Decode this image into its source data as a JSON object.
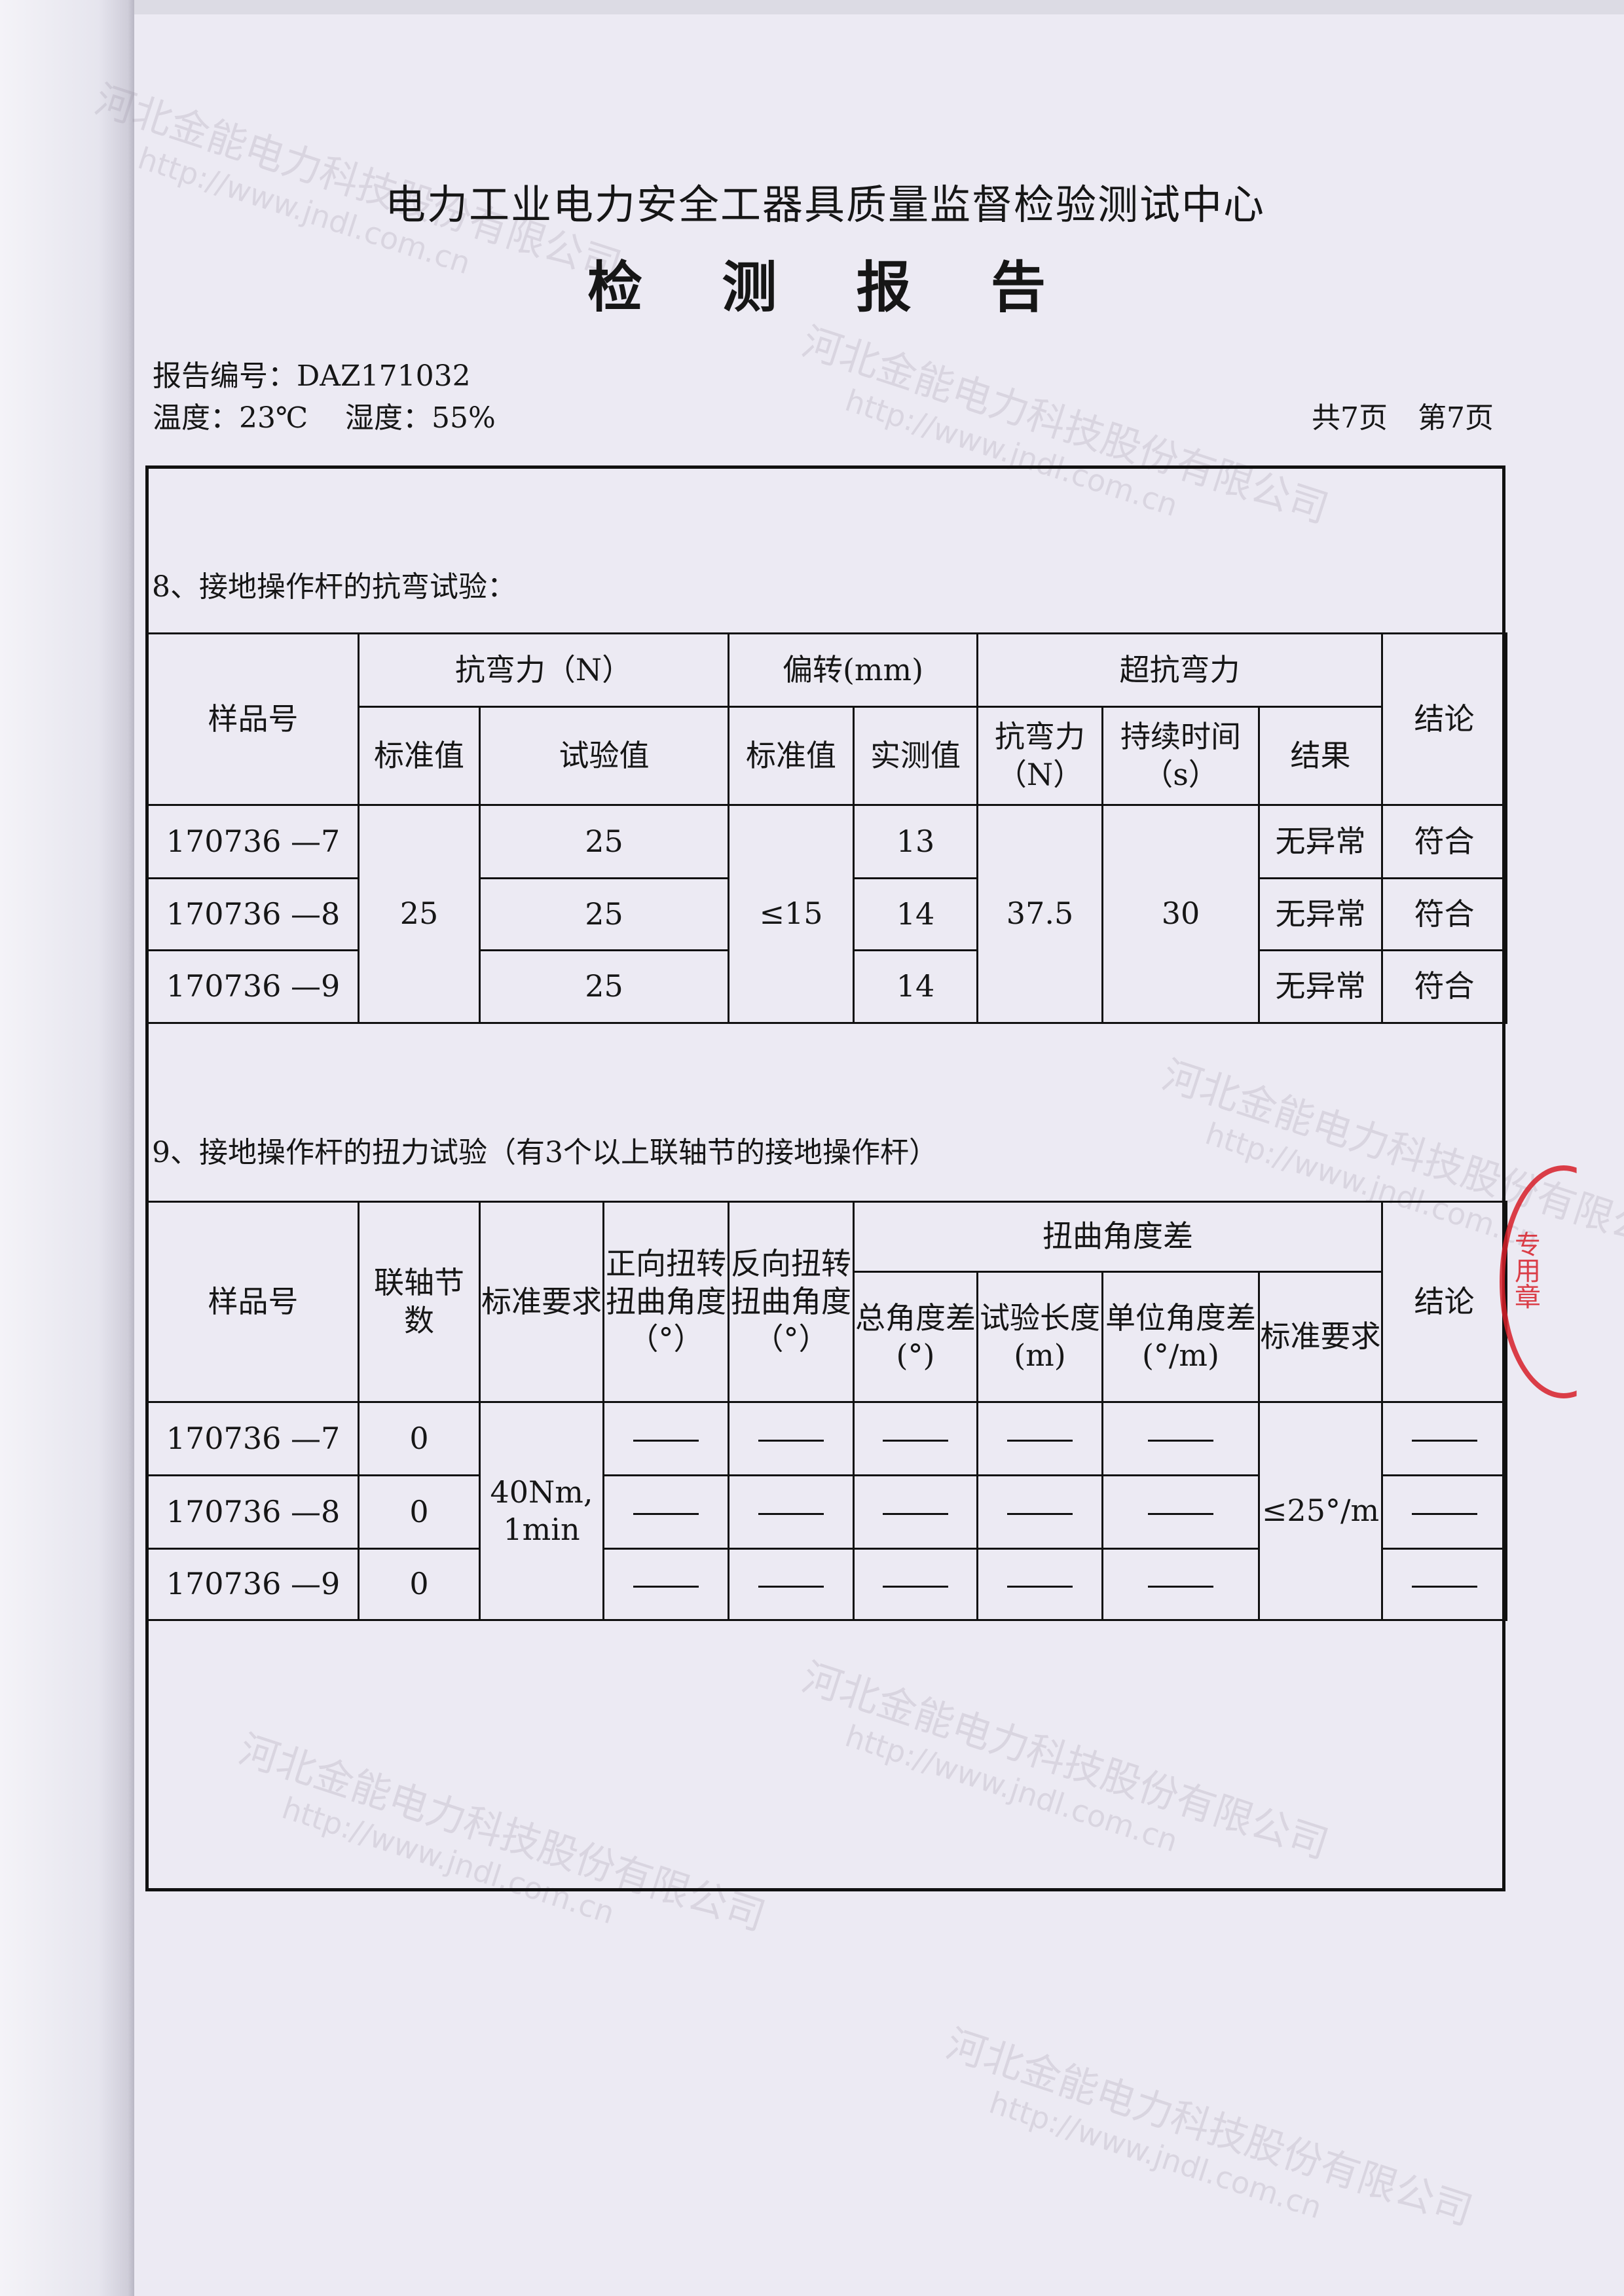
{
  "header": {
    "org_title": "电力工业电力安全工器具质量监督检验测试中心",
    "doc_title": "检 测 报 告",
    "report_no": "报告编号：DAZ171032",
    "temperature": "温度：23℃",
    "humidity": "湿度：55%",
    "total_pages": "共7页",
    "page": "第7页"
  },
  "watermark": {
    "company": "河北金能电力科技股份有限公司",
    "url": "http://www.jndl.com.cn"
  },
  "stamp": {
    "text": "专用章",
    "color": "#d71e28"
  },
  "section8": {
    "title": "8、接地操作杆的抗弯试验：",
    "headers": {
      "sample": "样品号",
      "bend_force": "抗弯力（N）",
      "deflection": "偏转(mm)",
      "over_bend": "超抗弯力",
      "conclusion": "结论",
      "std": "标准值",
      "test": "试验值",
      "std2": "标准值",
      "measured": "实测值",
      "ob_force": "抗弯力（N）",
      "duration": "持续时间（s）",
      "result": "结果"
    },
    "std_value": "25",
    "deflection_std": "≤15",
    "ob_force_value": "37.5",
    "duration_value": "30",
    "rows": [
      {
        "sample": "170736 —7",
        "test": "25",
        "measured": "13",
        "result": "无异常",
        "conclusion": "符合"
      },
      {
        "sample": "170736 —8",
        "test": "25",
        "measured": "14",
        "result": "无异常",
        "conclusion": "符合"
      },
      {
        "sample": "170736 —9",
        "test": "25",
        "measured": "14",
        "result": "无异常",
        "conclusion": "符合"
      }
    ]
  },
  "section9": {
    "title": "9、接地操作杆的扭力试验（有3个以上联轴节的接地操作杆）",
    "headers": {
      "sample": "样品号",
      "joints": "联轴节数",
      "std_req": "标准要求",
      "fwd": "正向扭转扭曲角度（°）",
      "rev": "反向扭转扭曲角度（°）",
      "twist_diff": "扭曲角度差",
      "total": "总角度差(°)",
      "length": "试验长度(m)",
      "unit": "单位角度差(°/m)",
      "std2": "标准要求",
      "conclusion": "结论"
    },
    "std_req_value": "40Nm, 1min",
    "std2_value": "≤25°/m",
    "rows": [
      {
        "sample": "170736 —7",
        "joints": "0"
      },
      {
        "sample": "170736 —8",
        "joints": "0"
      },
      {
        "sample": "170736 —9",
        "joints": "0"
      }
    ]
  }
}
